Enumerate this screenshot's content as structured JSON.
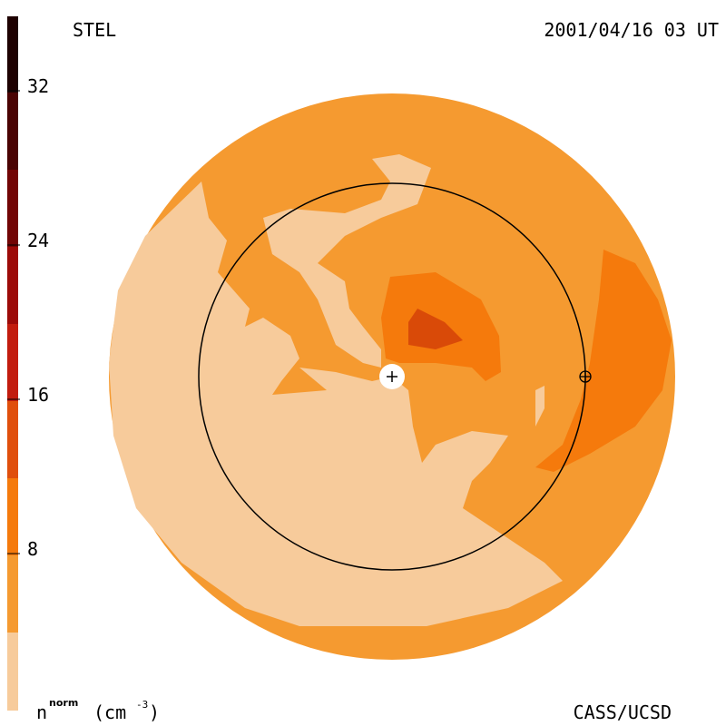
{
  "header": {
    "left": "STEL",
    "right": "2001/04/16 03 UT"
  },
  "colorbar": {
    "ticks": [
      8,
      16,
      24,
      32
    ],
    "label": {
      "symbol": "n",
      "superscript": "norm",
      "unit_open": "(cm",
      "unit_exponent": "-3",
      "unit_close": ")"
    }
  },
  "footer": "CASS/UCSD"
}
